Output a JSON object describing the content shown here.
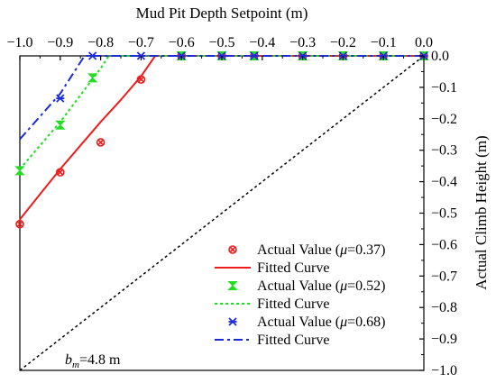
{
  "chart_data": {
    "type": "line",
    "xlabel": "Mud Pit Depth Setpoint (m)",
    "ylabel": "Actual Climb Height (m)",
    "xlim": [
      -1.0,
      0.0
    ],
    "ylim": [
      -1.0,
      0.0
    ],
    "x_axis_position": "top",
    "y_axis_position": "right",
    "x_ticks": [
      -1.0,
      -0.9,
      -0.8,
      -0.7,
      -0.6,
      -0.5,
      -0.4,
      -0.3,
      -0.2,
      -0.1,
      0.0
    ],
    "x_tick_labels": [
      "−1.0",
      "−0.9",
      "−0.8",
      "−0.7",
      "−0.6",
      "−0.5",
      "−0.4",
      "−0.3",
      "−0.2",
      "−0.1",
      "0.0"
    ],
    "y_ticks": [
      0.0,
      -0.1,
      -0.2,
      -0.3,
      -0.4,
      -0.5,
      -0.6,
      -0.7,
      -0.8,
      -0.9,
      -1.0
    ],
    "y_tick_labels": [
      "0.0",
      "−0.1",
      "−0.2",
      "−0.3",
      "−0.4",
      "−0.5",
      "−0.6",
      "−0.7",
      "−0.8",
      "−0.9",
      "−1.0"
    ],
    "grid": false,
    "legend_position": "bottom-right",
    "annotation": {
      "prefix": "b",
      "subscript": "m",
      "suffix": "=4.8 m"
    },
    "reference_line": {
      "x": [
        -1.0,
        0.0
      ],
      "y": [
        -1.0,
        0.0
      ],
      "color": "#000000",
      "style": "dotted"
    },
    "series": [
      {
        "label_prefix": "Actual Value (",
        "label_symbol": "μ",
        "label_suffix": "=0.37)",
        "kind": "markers",
        "marker": "circle-x",
        "color": "#ee1c1c",
        "x": [
          -1.0,
          -0.9,
          -0.8,
          -0.7,
          -0.6,
          -0.5,
          -0.42,
          -0.3,
          -0.2,
          -0.1,
          0.0
        ],
        "y": [
          -0.535,
          -0.37,
          -0.275,
          -0.075,
          0.0,
          0.0,
          0.0,
          0.0,
          0.0,
          0.0,
          0.0
        ]
      },
      {
        "label": "Fitted Curve",
        "kind": "line",
        "style": "solid",
        "color": "#ee1c1c",
        "x": [
          -1.0,
          -0.95,
          -0.9,
          -0.85,
          -0.8,
          -0.75,
          -0.7,
          -0.665,
          -0.6,
          -0.5,
          -0.4,
          -0.3,
          -0.2,
          -0.1,
          0.0
        ],
        "y": [
          -0.52,
          -0.44,
          -0.36,
          -0.285,
          -0.21,
          -0.14,
          -0.065,
          0.0,
          0.0,
          0.0,
          0.0,
          0.0,
          0.0,
          0.0,
          0.0
        ]
      },
      {
        "label_prefix": "Actual Value (",
        "label_symbol": "μ",
        "label_suffix": "=0.52)",
        "kind": "markers",
        "marker": "x-tri",
        "color": "#22dd22",
        "x": [
          -1.0,
          -0.9,
          -0.82,
          -0.6,
          -0.5,
          -0.42,
          -0.3,
          -0.2,
          -0.1,
          0.0
        ],
        "y": [
          -0.365,
          -0.22,
          -0.07,
          0.0,
          0.0,
          0.0,
          0.0,
          0.0,
          0.0,
          0.0
        ]
      },
      {
        "label": "Fitted Curve",
        "kind": "line",
        "style": "dotted",
        "color": "#22dd22",
        "x": [
          -1.0,
          -0.9,
          -0.8,
          -0.78,
          -0.6,
          -0.5,
          -0.4,
          -0.3,
          -0.2,
          -0.1,
          0.0
        ],
        "y": [
          -0.36,
          -0.21,
          -0.04,
          0.0,
          0.0,
          0.0,
          0.0,
          0.0,
          0.0,
          0.0,
          0.0
        ]
      },
      {
        "label_prefix": "Actual Value (",
        "label_symbol": "μ",
        "label_suffix": "=0.68)",
        "kind": "markers",
        "marker": "asterisk",
        "color": "#1a2bd8",
        "x": [
          -0.9,
          -0.82,
          -0.7,
          -0.6,
          -0.5,
          -0.42,
          -0.3,
          -0.2,
          -0.1,
          0.0
        ],
        "y": [
          -0.135,
          0.0,
          0.0,
          0.0,
          0.0,
          0.0,
          0.0,
          0.0,
          0.0,
          0.0
        ]
      },
      {
        "label": "Fitted Curve",
        "kind": "line",
        "style": "dashdot",
        "color": "#1a2bd8",
        "x": [
          -1.0,
          -0.9,
          -0.84,
          -0.8,
          -0.6,
          -0.4,
          -0.2,
          0.0
        ],
        "y": [
          -0.265,
          -0.12,
          0.0,
          0.0,
          0.0,
          0.0,
          0.0,
          0.0
        ]
      }
    ]
  }
}
